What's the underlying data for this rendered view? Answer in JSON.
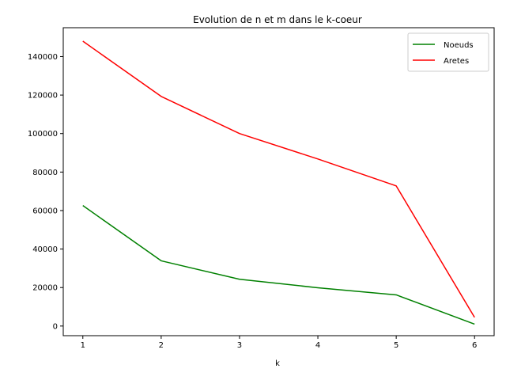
{
  "chart_data": {
    "type": "line",
    "title": "Evolution de n et m dans le k-coeur",
    "xlabel": "k",
    "ylabel": "",
    "x": [
      1,
      2,
      3,
      4,
      5,
      6
    ],
    "xlim": [
      0.75,
      6.25
    ],
    "ylim": [
      -5000,
      155000
    ],
    "xticks": [
      1,
      2,
      3,
      4,
      5,
      6
    ],
    "yticks": [
      0,
      20000,
      40000,
      60000,
      80000,
      100000,
      120000,
      140000
    ],
    "grid": false,
    "legend_position": "top-right",
    "series": [
      {
        "name": "Noeuds",
        "color": "#008000",
        "values": [
          62600,
          33900,
          24300,
          19900,
          16200,
          1000
        ]
      },
      {
        "name": "Aretes",
        "color": "#ff0000",
        "values": [
          148000,
          119300,
          100000,
          86800,
          72800,
          4500
        ]
      }
    ]
  }
}
